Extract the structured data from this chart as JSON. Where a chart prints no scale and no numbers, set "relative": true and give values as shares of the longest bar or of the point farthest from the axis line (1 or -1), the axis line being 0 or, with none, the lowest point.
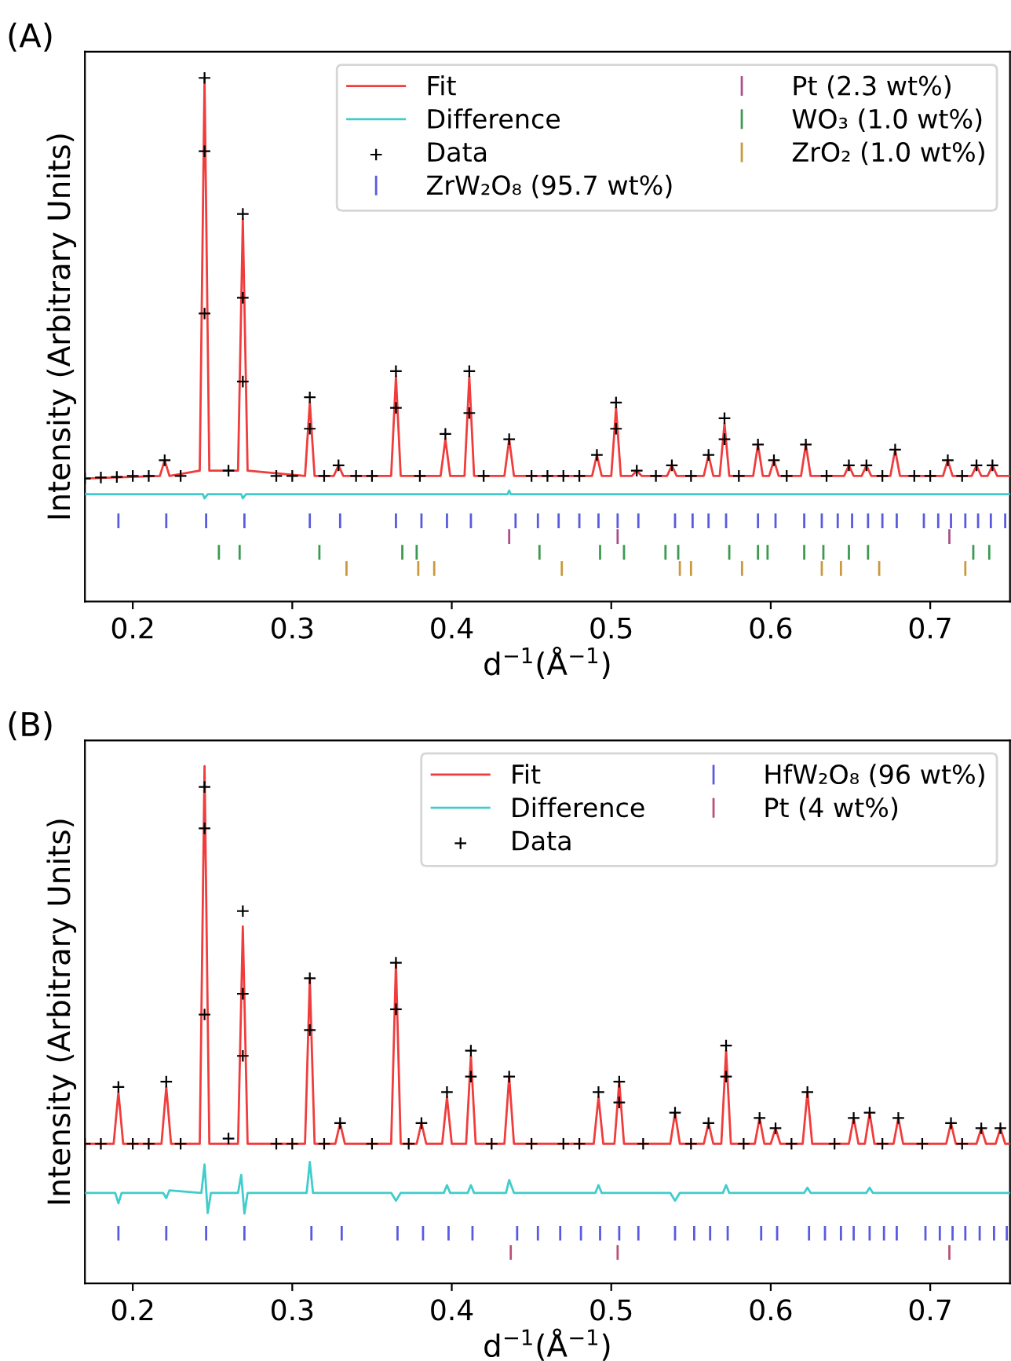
{
  "chart_data": [
    {
      "type": "line",
      "title": "(A)",
      "xlabel": "d$^{−1}$(Å$^{−1}$)",
      "ylabel": "Intensity (Arbitrary Units)",
      "relative": true,
      "tick_labels": "x",
      "legend": "top right",
      "xlim": [
        0.17,
        0.75
      ],
      "xticks": [
        0.2,
        0.3,
        0.4,
        0.5,
        0.6,
        0.7
      ],
      "series": [
        {
          "name": "Fit",
          "color": "#f03c3c",
          "x": [
            0.17,
            0.217,
            0.22,
            0.223,
            0.242,
            0.245,
            0.248,
            0.266,
            0.269,
            0.272,
            0.308,
            0.311,
            0.314,
            0.326,
            0.329,
            0.332,
            0.362,
            0.365,
            0.368,
            0.393,
            0.396,
            0.399,
            0.408,
            0.411,
            0.414,
            0.433,
            0.436,
            0.439,
            0.488,
            0.491,
            0.494,
            0.5,
            0.503,
            0.506,
            0.513,
            0.516,
            0.519,
            0.535,
            0.538,
            0.541,
            0.558,
            0.561,
            0.564,
            0.568,
            0.571,
            0.574,
            0.589,
            0.592,
            0.595,
            0.599,
            0.602,
            0.605,
            0.619,
            0.622,
            0.625,
            0.646,
            0.649,
            0.652,
            0.657,
            0.66,
            0.663,
            0.675,
            0.678,
            0.681,
            0.708,
            0.711,
            0.714,
            0.726,
            0.729,
            0.732,
            0.736,
            0.739,
            0.742,
            0.75
          ],
          "values": [
            0.235,
            0.24,
            0.27,
            0.24,
            0.25,
            1.0,
            0.25,
            0.25,
            0.73,
            0.25,
            0.24,
            0.38,
            0.24,
            0.24,
            0.26,
            0.24,
            0.24,
            0.43,
            0.24,
            0.24,
            0.31,
            0.24,
            0.24,
            0.43,
            0.24,
            0.24,
            0.31,
            0.24,
            0.24,
            0.28,
            0.24,
            0.24,
            0.37,
            0.24,
            0.24,
            0.25,
            0.24,
            0.24,
            0.26,
            0.24,
            0.24,
            0.28,
            0.24,
            0.24,
            0.34,
            0.24,
            0.24,
            0.3,
            0.24,
            0.24,
            0.27,
            0.24,
            0.24,
            0.3,
            0.24,
            0.24,
            0.26,
            0.24,
            0.24,
            0.26,
            0.24,
            0.24,
            0.29,
            0.24,
            0.24,
            0.27,
            0.24,
            0.24,
            0.26,
            0.24,
            0.24,
            0.26,
            0.24,
            0.24
          ]
        },
        {
          "name": "Difference",
          "color": "#40cccc",
          "x": [
            0.17,
            0.244,
            0.245,
            0.247,
            0.268,
            0.269,
            0.271,
            0.435,
            0.436,
            0.437,
            0.75
          ],
          "values": [
            0.205,
            0.205,
            0.197,
            0.205,
            0.205,
            0.197,
            0.205,
            0.205,
            0.212,
            0.205,
            0.205
          ]
        },
        {
          "name": "Data",
          "type": "scatter",
          "marker": "cross",
          "color": "#000000",
          "x": [
            0.17,
            0.18,
            0.19,
            0.2,
            0.21,
            0.22,
            0.23,
            0.245,
            0.245,
            0.245,
            0.26,
            0.269,
            0.269,
            0.269,
            0.29,
            0.3,
            0.311,
            0.311,
            0.32,
            0.329,
            0.34,
            0.35,
            0.365,
            0.365,
            0.38,
            0.396,
            0.411,
            0.411,
            0.42,
            0.436,
            0.45,
            0.46,
            0.47,
            0.48,
            0.491,
            0.503,
            0.503,
            0.516,
            0.528,
            0.538,
            0.55,
            0.561,
            0.571,
            0.571,
            0.58,
            0.592,
            0.602,
            0.61,
            0.622,
            0.635,
            0.649,
            0.66,
            0.67,
            0.678,
            0.69,
            0.7,
            0.711,
            0.72,
            0.729,
            0.739
          ],
          "values": [
            0.235,
            0.237,
            0.238,
            0.24,
            0.24,
            0.27,
            0.24,
            1.0,
            0.86,
            0.55,
            0.25,
            0.74,
            0.58,
            0.42,
            0.24,
            0.24,
            0.39,
            0.33,
            0.24,
            0.26,
            0.24,
            0.24,
            0.44,
            0.37,
            0.24,
            0.32,
            0.44,
            0.36,
            0.24,
            0.31,
            0.24,
            0.24,
            0.24,
            0.24,
            0.28,
            0.38,
            0.33,
            0.25,
            0.24,
            0.26,
            0.24,
            0.28,
            0.35,
            0.31,
            0.24,
            0.3,
            0.27,
            0.24,
            0.3,
            0.24,
            0.26,
            0.26,
            0.24,
            0.29,
            0.24,
            0.24,
            0.27,
            0.24,
            0.26,
            0.26
          ]
        },
        {
          "name": "ZrW₂O₈ (95.7 wt%)",
          "color": "#5a5ae0",
          "x": [
            0.191,
            0.191,
            null,
            0.221,
            0.221,
            null,
            0.246,
            0.246,
            null,
            0.27,
            0.27,
            null,
            0.311,
            0.311,
            null,
            0.33,
            0.33,
            null,
            0.365,
            0.365,
            null,
            0.381,
            0.381,
            null,
            0.397,
            0.397,
            null,
            0.412,
            0.412,
            null,
            0.44,
            0.44,
            null,
            0.454,
            0.454,
            null,
            0.467,
            0.467,
            null,
            0.48,
            0.48,
            null,
            0.492,
            0.492,
            null,
            0.504,
            0.504,
            null,
            0.517,
            0.517,
            null,
            0.54,
            0.54,
            null,
            0.551,
            0.551,
            null,
            0.561,
            0.561,
            null,
            0.572,
            0.572,
            null,
            0.592,
            0.592,
            null,
            0.603,
            0.603,
            null,
            0.621,
            0.621,
            null,
            0.632,
            0.632,
            null,
            0.642,
            0.642,
            null,
            0.651,
            0.651,
            null,
            0.661,
            0.661,
            null,
            0.67,
            0.67,
            null,
            0.679,
            0.679,
            null,
            0.696,
            0.696,
            null,
            0.705,
            0.705,
            null,
            0.713,
            0.713,
            null,
            0.722,
            0.722,
            null,
            0.73,
            0.73,
            null,
            0.738,
            0.738,
            null,
            0.747,
            0.747
          ],
          "values": [
            0.142,
            0.166,
            null,
            0.142,
            0.166,
            null,
            0.142,
            0.166,
            null,
            0.142,
            0.166,
            null,
            0.142,
            0.166,
            null,
            0.142,
            0.166,
            null,
            0.142,
            0.166,
            null,
            0.142,
            0.166,
            null,
            0.142,
            0.166,
            null,
            0.142,
            0.166,
            null,
            0.142,
            0.166,
            null,
            0.142,
            0.166,
            null,
            0.142,
            0.166,
            null,
            0.142,
            0.166,
            null,
            0.142,
            0.166,
            null,
            0.142,
            0.166,
            null,
            0.142,
            0.166,
            null,
            0.142,
            0.166,
            null,
            0.142,
            0.166,
            null,
            0.142,
            0.166,
            null,
            0.142,
            0.166,
            null,
            0.142,
            0.166,
            null,
            0.142,
            0.166,
            null,
            0.142,
            0.166,
            null,
            0.142,
            0.166,
            null,
            0.142,
            0.166,
            null,
            0.142,
            0.166,
            null,
            0.142,
            0.166,
            null,
            0.142,
            0.166,
            null,
            0.142,
            0.166,
            null,
            0.142,
            0.166,
            null,
            0.142,
            0.166,
            null,
            0.142,
            0.166,
            null,
            0.142,
            0.166,
            null,
            0.142,
            0.166,
            null,
            0.142,
            0.166,
            null,
            0.142,
            0.166
          ]
        },
        {
          "name": "Pt (2.3 wt%)",
          "color": "#a8508c",
          "x": [
            0.436,
            0.436,
            null,
            0.504,
            0.504,
            null,
            0.712,
            0.712
          ],
          "values": [
            0.112,
            0.136,
            null,
            0.112,
            0.136,
            null,
            0.112,
            0.136
          ]
        },
        {
          "name": "WO₃ (1.0 wt%)",
          "color": "#3c9a50",
          "x": [
            0.254,
            0.254,
            null,
            0.267,
            0.267,
            null,
            0.317,
            0.317,
            null,
            0.369,
            0.369,
            null,
            0.378,
            0.378,
            null,
            0.455,
            0.455,
            null,
            0.493,
            0.493,
            null,
            0.508,
            0.508,
            null,
            0.534,
            0.534,
            null,
            0.542,
            0.542,
            null,
            0.574,
            0.574,
            null,
            0.592,
            0.592,
            null,
            0.598,
            0.598,
            null,
            0.621,
            0.621,
            null,
            0.633,
            0.633,
            null,
            0.649,
            0.649,
            null,
            0.661,
            0.661,
            null,
            0.727,
            0.727,
            null,
            0.737,
            0.737
          ],
          "values": [
            0.082,
            0.106,
            null,
            0.082,
            0.106,
            null,
            0.082,
            0.106,
            null,
            0.082,
            0.106,
            null,
            0.082,
            0.106,
            null,
            0.082,
            0.106,
            null,
            0.082,
            0.106,
            null,
            0.082,
            0.106,
            null,
            0.082,
            0.106,
            null,
            0.082,
            0.106,
            null,
            0.082,
            0.106,
            null,
            0.082,
            0.106,
            null,
            0.082,
            0.106,
            null,
            0.082,
            0.106,
            null,
            0.082,
            0.106,
            null,
            0.082,
            0.106,
            null,
            0.082,
            0.106,
            null,
            0.082,
            0.106,
            null,
            0.082,
            0.106
          ]
        },
        {
          "name": "ZrO₂ (1.0 wt%)",
          "color": "#c89a3c",
          "x": [
            0.334,
            0.334,
            null,
            0.379,
            0.379,
            null,
            0.389,
            0.389,
            null,
            0.469,
            0.469,
            null,
            0.543,
            0.543,
            null,
            0.55,
            0.55,
            null,
            0.582,
            0.582,
            null,
            0.632,
            0.632,
            null,
            0.644,
            0.644,
            null,
            0.668,
            0.668,
            null,
            0.722,
            0.722
          ],
          "values": [
            0.051,
            0.075,
            null,
            0.051,
            0.075,
            null,
            0.051,
            0.075,
            null,
            0.051,
            0.075,
            null,
            0.051,
            0.075,
            null,
            0.051,
            0.075,
            null,
            0.051,
            0.075,
            null,
            0.051,
            0.075,
            null,
            0.051,
            0.075,
            null,
            0.051,
            0.075,
            null,
            0.051,
            0.075
          ]
        }
      ]
    },
    {
      "type": "line",
      "title": "(B)",
      "xlabel": "d$^{−1}$(Å$^{−1}$)",
      "ylabel": "Intensity (Arbitrary Units)",
      "relative": true,
      "tick_labels": "x",
      "legend": "top right",
      "xlim": [
        0.17,
        0.75
      ],
      "xticks": [
        0.2,
        0.3,
        0.4,
        0.5,
        0.6,
        0.7
      ],
      "series": [
        {
          "name": "Fit",
          "color": "#f03c3c",
          "x": [
            0.17,
            0.188,
            0.191,
            0.194,
            0.218,
            0.221,
            0.224,
            0.242,
            0.245,
            0.248,
            0.266,
            0.269,
            0.272,
            0.308,
            0.311,
            0.314,
            0.327,
            0.33,
            0.333,
            0.362,
            0.365,
            0.368,
            0.378,
            0.381,
            0.384,
            0.394,
            0.397,
            0.4,
            0.409,
            0.412,
            0.415,
            0.433,
            0.436,
            0.439,
            0.489,
            0.492,
            0.495,
            0.502,
            0.505,
            0.508,
            0.537,
            0.54,
            0.543,
            0.558,
            0.561,
            0.564,
            0.569,
            0.572,
            0.575,
            0.59,
            0.593,
            0.596,
            0.6,
            0.603,
            0.606,
            0.62,
            0.623,
            0.626,
            0.649,
            0.652,
            0.655,
            0.659,
            0.662,
            0.665,
            0.677,
            0.68,
            0.683,
            0.71,
            0.713,
            0.716,
            0.729,
            0.732,
            0.735,
            0.741,
            0.744,
            0.747,
            0.75
          ],
          "values": [
            0.27,
            0.27,
            0.37,
            0.27,
            0.27,
            0.38,
            0.27,
            0.27,
            1.0,
            0.27,
            0.27,
            0.69,
            0.27,
            0.27,
            0.59,
            0.27,
            0.27,
            0.31,
            0.27,
            0.27,
            0.62,
            0.27,
            0.27,
            0.31,
            0.27,
            0.27,
            0.36,
            0.27,
            0.27,
            0.44,
            0.27,
            0.27,
            0.4,
            0.27,
            0.27,
            0.36,
            0.27,
            0.27,
            0.39,
            0.27,
            0.27,
            0.33,
            0.27,
            0.27,
            0.31,
            0.27,
            0.27,
            0.45,
            0.27,
            0.27,
            0.32,
            0.27,
            0.27,
            0.3,
            0.27,
            0.27,
            0.37,
            0.27,
            0.27,
            0.32,
            0.27,
            0.27,
            0.33,
            0.27,
            0.27,
            0.32,
            0.27,
            0.27,
            0.31,
            0.27,
            0.27,
            0.3,
            0.27,
            0.27,
            0.3,
            0.27,
            0.27
          ]
        },
        {
          "name": "Difference",
          "color": "#40cccc",
          "x": [
            0.17,
            0.189,
            0.191,
            0.193,
            0.219,
            0.221,
            0.223,
            0.243,
            0.245,
            0.247,
            0.249,
            0.266,
            0.268,
            0.27,
            0.272,
            0.309,
            0.311,
            0.313,
            0.362,
            0.365,
            0.368,
            0.395,
            0.397,
            0.399,
            0.41,
            0.412,
            0.414,
            0.434,
            0.436,
            0.439,
            0.49,
            0.492,
            0.494,
            0.537,
            0.54,
            0.543,
            0.57,
            0.572,
            0.574,
            0.621,
            0.623,
            0.625,
            0.66,
            0.662,
            0.664,
            0.75
          ],
          "values": [
            0.175,
            0.175,
            0.155,
            0.175,
            0.175,
            0.165,
            0.18,
            0.175,
            0.23,
            0.136,
            0.175,
            0.175,
            0.21,
            0.135,
            0.175,
            0.175,
            0.235,
            0.175,
            0.175,
            0.16,
            0.175,
            0.175,
            0.19,
            0.175,
            0.175,
            0.19,
            0.175,
            0.175,
            0.2,
            0.175,
            0.175,
            0.19,
            0.175,
            0.175,
            0.16,
            0.175,
            0.175,
            0.19,
            0.175,
            0.175,
            0.185,
            0.175,
            0.175,
            0.185,
            0.175,
            0.175
          ]
        },
        {
          "name": "Data",
          "type": "scatter",
          "marker": "cross",
          "color": "#000000",
          "x": [
            0.17,
            0.18,
            0.191,
            0.2,
            0.21,
            0.221,
            0.23,
            0.245,
            0.245,
            0.245,
            0.26,
            0.269,
            0.269,
            0.269,
            0.29,
            0.3,
            0.311,
            0.311,
            0.32,
            0.33,
            0.35,
            0.365,
            0.365,
            0.373,
            0.381,
            0.397,
            0.412,
            0.412,
            0.425,
            0.436,
            0.45,
            0.47,
            0.48,
            0.492,
            0.505,
            0.505,
            0.52,
            0.54,
            0.55,
            0.561,
            0.572,
            0.572,
            0.583,
            0.593,
            0.603,
            0.613,
            0.623,
            0.64,
            0.652,
            0.662,
            0.67,
            0.68,
            0.695,
            0.713,
            0.72,
            0.732,
            0.744
          ],
          "values": [
            0.27,
            0.27,
            0.38,
            0.27,
            0.27,
            0.39,
            0.27,
            0.96,
            0.88,
            0.52,
            0.28,
            0.72,
            0.56,
            0.44,
            0.27,
            0.27,
            0.59,
            0.49,
            0.27,
            0.31,
            0.27,
            0.62,
            0.53,
            0.27,
            0.31,
            0.37,
            0.45,
            0.4,
            0.27,
            0.4,
            0.27,
            0.27,
            0.27,
            0.37,
            0.39,
            0.35,
            0.27,
            0.33,
            0.27,
            0.31,
            0.46,
            0.4,
            0.27,
            0.32,
            0.3,
            0.27,
            0.37,
            0.27,
            0.32,
            0.33,
            0.27,
            0.32,
            0.27,
            0.31,
            0.27,
            0.3,
            0.3
          ]
        },
        {
          "name": "HfW₂O₈ (96 wt%)",
          "color": "#5a5ae0",
          "x": [
            0.191,
            0.191,
            null,
            0.221,
            0.221,
            null,
            0.246,
            0.246,
            null,
            0.27,
            0.27,
            null,
            0.312,
            0.312,
            null,
            0.331,
            0.331,
            null,
            0.366,
            0.366,
            null,
            0.382,
            0.382,
            null,
            0.398,
            0.398,
            null,
            0.413,
            0.413,
            null,
            0.441,
            0.441,
            null,
            0.454,
            0.454,
            null,
            0.468,
            0.468,
            null,
            0.481,
            0.481,
            null,
            0.493,
            0.493,
            null,
            0.505,
            0.505,
            null,
            0.517,
            0.517,
            null,
            0.54,
            0.54,
            null,
            0.552,
            0.552,
            null,
            0.562,
            0.562,
            null,
            0.573,
            0.573,
            null,
            0.594,
            0.594,
            null,
            0.604,
            0.604,
            null,
            0.624,
            0.624,
            null,
            0.634,
            0.634,
            null,
            0.644,
            0.644,
            null,
            0.652,
            0.652,
            null,
            0.662,
            0.662,
            null,
            0.671,
            0.671,
            null,
            0.679,
            0.679,
            null,
            0.697,
            0.697,
            null,
            0.706,
            0.706,
            null,
            0.714,
            0.714,
            null,
            0.722,
            0.722,
            null,
            0.731,
            0.731,
            null,
            0.74,
            0.74,
            null,
            0.748,
            0.748
          ],
          "values": [
            0.085,
            0.109,
            null,
            0.085,
            0.109,
            null,
            0.085,
            0.109,
            null,
            0.085,
            0.109,
            null,
            0.085,
            0.109,
            null,
            0.085,
            0.109,
            null,
            0.085,
            0.109,
            null,
            0.085,
            0.109,
            null,
            0.085,
            0.109,
            null,
            0.085,
            0.109,
            null,
            0.085,
            0.109,
            null,
            0.085,
            0.109,
            null,
            0.085,
            0.109,
            null,
            0.085,
            0.109,
            null,
            0.085,
            0.109,
            null,
            0.085,
            0.109,
            null,
            0.085,
            0.109,
            null,
            0.085,
            0.109,
            null,
            0.085,
            0.109,
            null,
            0.085,
            0.109,
            null,
            0.085,
            0.109,
            null,
            0.085,
            0.109,
            null,
            0.085,
            0.109,
            null,
            0.085,
            0.109,
            null,
            0.085,
            0.109,
            null,
            0.085,
            0.109,
            null,
            0.085,
            0.109,
            null,
            0.085,
            0.109,
            null,
            0.085,
            0.109,
            null,
            0.085,
            0.109,
            null,
            0.085,
            0.109,
            null,
            0.085,
            0.109,
            null,
            0.085,
            0.109,
            null,
            0.085,
            0.109,
            null,
            0.085,
            0.109,
            null,
            0.085,
            0.109,
            null,
            0.085,
            0.109
          ]
        },
        {
          "name": "Pt (4 wt%)",
          "color": "#b85078",
          "x": [
            0.437,
            0.437,
            null,
            0.504,
            0.504,
            null,
            0.712,
            0.712
          ],
          "values": [
            0.048,
            0.072,
            null,
            0.048,
            0.072,
            null,
            0.048,
            0.072
          ]
        }
      ]
    }
  ]
}
